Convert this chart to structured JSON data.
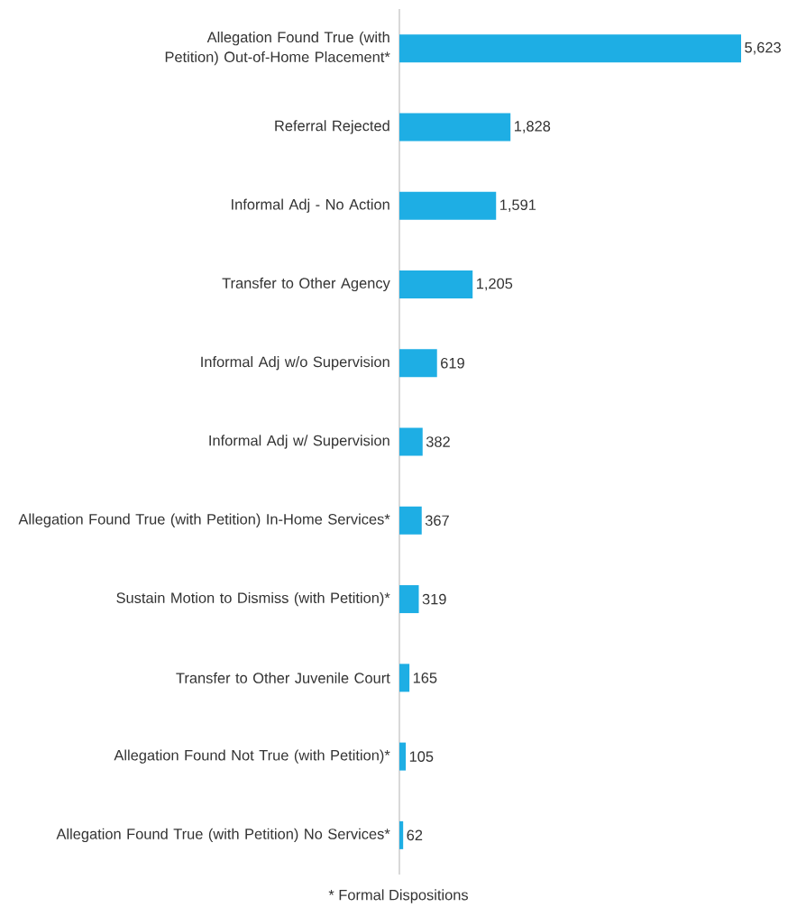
{
  "chart_data": {
    "type": "bar",
    "orientation": "horizontal",
    "categories": [
      "Allegation Found True (with Petition) Out-of-Home Placement*",
      "Referral Rejected",
      "Informal Adj - No Action",
      "Transfer to Other Agency",
      "Informal Adj w/o Supervision",
      "Informal Adj w/ Supervision",
      "Allegation Found True (with Petition) In-Home Services*",
      "Sustain Motion to Dismiss (with Petition)*",
      "Transfer to Other Juvenile Court",
      "Allegation Found Not True (with Petition)*",
      "Allegation Found True (with Petition) No Services*"
    ],
    "values": [
      5623,
      1828,
      1591,
      1205,
      619,
      382,
      367,
      319,
      165,
      105,
      62
    ],
    "value_labels": [
      "5,623",
      "1,828",
      "1,591",
      "1,205",
      "619",
      "382",
      "367",
      "319",
      "165",
      "105",
      "62"
    ],
    "color": "#1eaee4",
    "annotations": [
      "* Formal Dispositions"
    ]
  }
}
